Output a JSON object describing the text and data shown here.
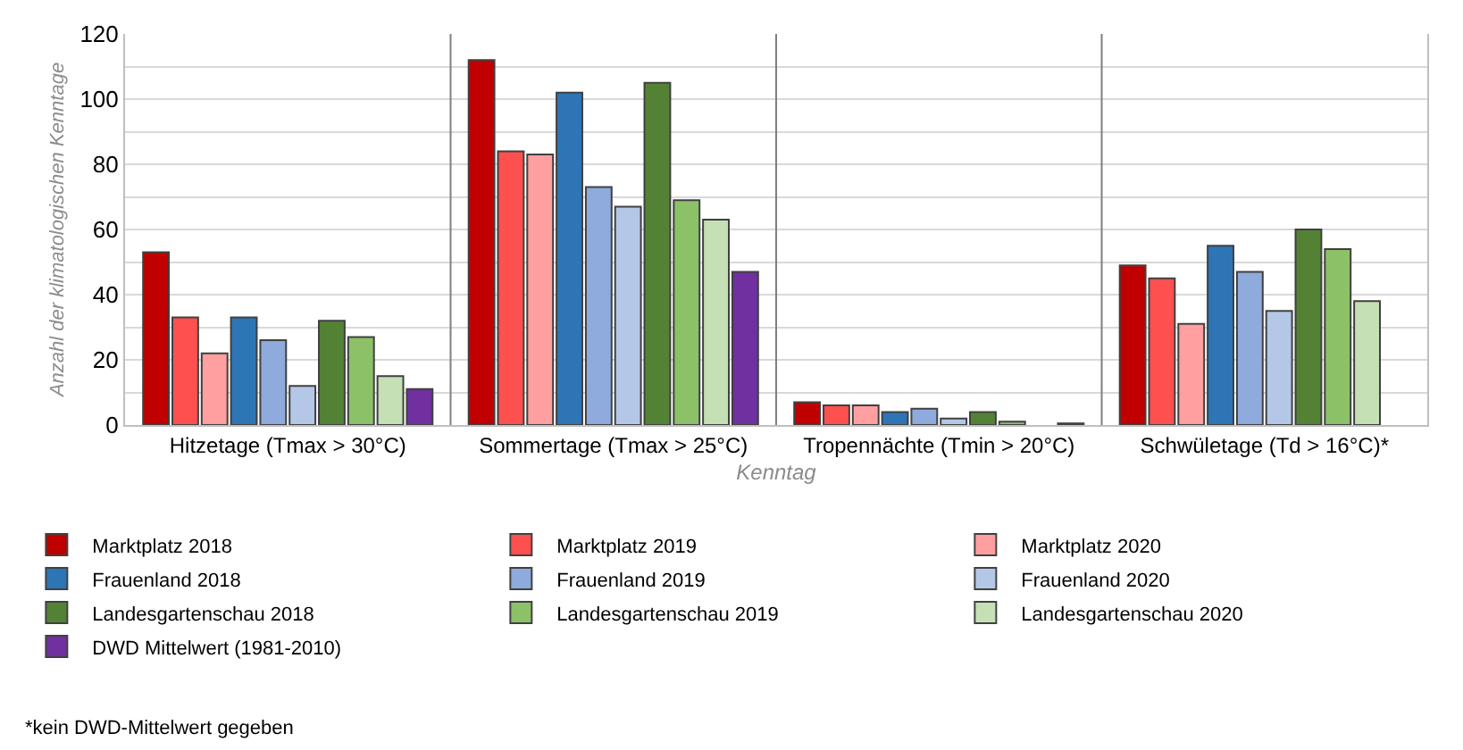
{
  "chart_data": {
    "type": "bar",
    "xlabel": "Kenntag",
    "ylabel": "Anzahl der klimatologischen Kenntage",
    "categories": [
      "Hitzetage (Tmax > 30°C)",
      "Sommertage (Tmax > 25°C)",
      "Tropennächte (Tmin > 20°C)",
      "Schwületage (Td > 16°C)*"
    ],
    "series": [
      {
        "name": "Marktplatz 2018",
        "color": "#c00000",
        "values": [
          53,
          112,
          7,
          49
        ]
      },
      {
        "name": "Marktplatz 2019",
        "color": "#ff5050",
        "values": [
          33,
          84,
          6,
          45
        ]
      },
      {
        "name": "Marktplatz 2020",
        "color": "#ff9f9f",
        "values": [
          22,
          83,
          6,
          31
        ]
      },
      {
        "name": "Frauenland 2018",
        "color": "#2e75b6",
        "values": [
          33,
          102,
          4,
          55
        ]
      },
      {
        "name": "Frauenland 2019",
        "color": "#8faadc",
        "values": [
          26,
          73,
          5,
          47
        ]
      },
      {
        "name": "Frauenland 2020",
        "color": "#b4c7e7",
        "values": [
          12,
          67,
          2,
          35
        ]
      },
      {
        "name": "Landesgartenschau 2018",
        "color": "#548235",
        "values": [
          32,
          105,
          4,
          60
        ]
      },
      {
        "name": "Landesgartenschau 2019",
        "color": "#8cc168",
        "values": [
          27,
          69,
          1,
          54
        ]
      },
      {
        "name": "Landesgartenschau 2020",
        "color": "#c5e0b4",
        "values": [
          15,
          63,
          null,
          38
        ]
      },
      {
        "name": "DWD Mittelwert (1981-2010)",
        "color": "#7030a0",
        "values": [
          11,
          47,
          0.5,
          null
        ]
      }
    ],
    "ylim": [
      0,
      120
    ],
    "yticks": [
      0,
      {
        "value": 10,
        "label": null
      },
      20,
      {
        "value": 30,
        "label": null
      },
      40,
      {
        "value": 50,
        "label": null
      },
      60,
      {
        "value": 70,
        "label": null
      },
      80,
      {
        "value": 90,
        "label": null
      },
      100,
      {
        "value": 110,
        "label": null
      },
      120
    ],
    "grid": "y",
    "legend": "bottom",
    "annotations": [
      "*kein DWD-Mittelwert gegeben"
    ]
  }
}
